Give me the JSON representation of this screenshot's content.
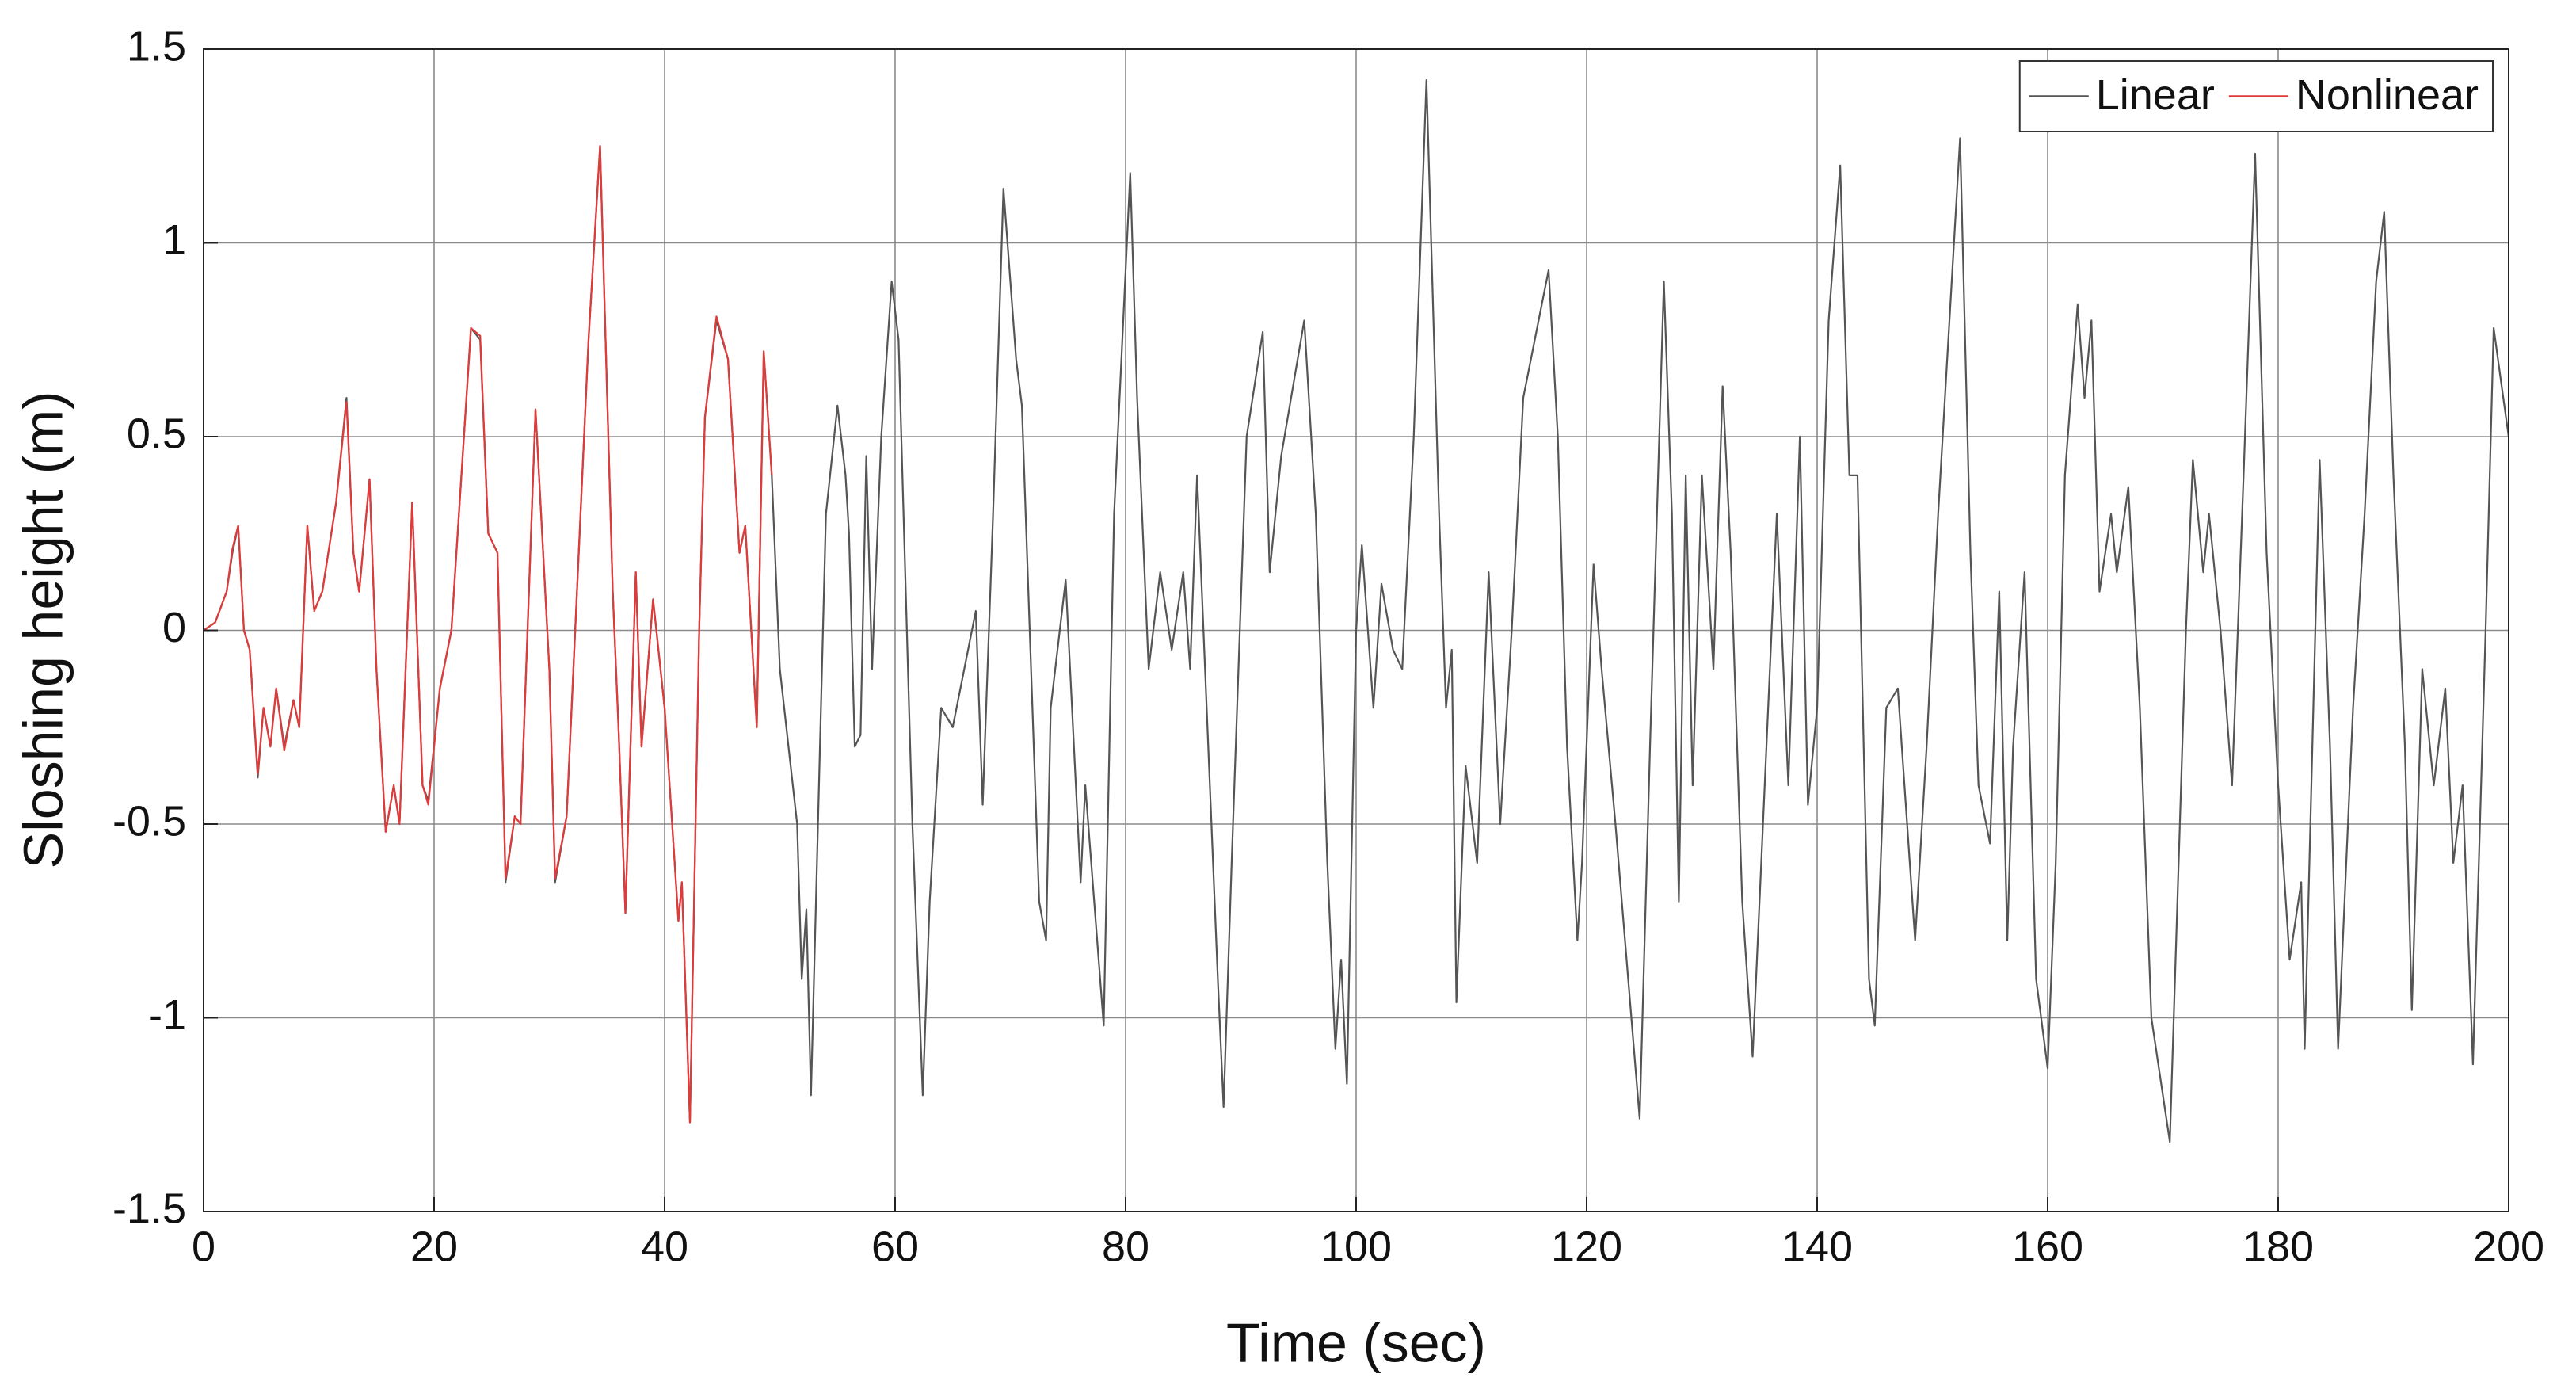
{
  "chart_data": {
    "type": "line",
    "xlabel": "Time (sec)",
    "ylabel": "Sloshing height (m)",
    "xlim": [
      0,
      200
    ],
    "xticks": [
      0,
      20,
      40,
      60,
      80,
      100,
      120,
      140,
      160,
      180,
      200
    ],
    "ylim": [
      -1.5,
      1.5
    ],
    "yticks": [
      -1.5,
      -1,
      -0.5,
      0,
      0.5,
      1,
      1.5
    ],
    "grid": true,
    "legend": "upper right",
    "series": [
      {
        "name": "Linear",
        "color": "#555555",
        "x": [
          0,
          1,
          2,
          2.5,
          3,
          3.5,
          4,
          4.7,
          5.2,
          5.8,
          6.3,
          7,
          7.8,
          8.3,
          9,
          9.6,
          10.3,
          11.5,
          12.4,
          13,
          13.5,
          14.4,
          15,
          15.8,
          16.5,
          17,
          18.1,
          19,
          19.5,
          20.5,
          21.5,
          23.2,
          24,
          24.7,
          25.5,
          26.2,
          27,
          27.5,
          28.8,
          30,
          30.5,
          31.5,
          33.4,
          34.4,
          35.5,
          36,
          36.6,
          37.5,
          38,
          39,
          40,
          41.2,
          41.5,
          42.2,
          43,
          43.5,
          44.5,
          45.5,
          46.5,
          47,
          48,
          48.6,
          49.3,
          50,
          51.5,
          51.9,
          52.3,
          52.7,
          54,
          55,
          55.7,
          56,
          56.5,
          57,
          57.5,
          58,
          58.8,
          59.7,
          60.3,
          61.5,
          62.4,
          63,
          64,
          65,
          66,
          67,
          67.6,
          68.5,
          69.4,
          70.5,
          71,
          72.5,
          73.1,
          73.5,
          74.8,
          76.1,
          76.5,
          78.1,
          79,
          80.4,
          81,
          82,
          83,
          84,
          85,
          85.6,
          86.2,
          88,
          88.5,
          89.2,
          90.5,
          91.9,
          92.5,
          93.5,
          95.5,
          96.5,
          97.5,
          98.2,
          98.7,
          99.2,
          100,
          100.5,
          101.5,
          102.2,
          103.2,
          104,
          105,
          106.1,
          107.2,
          107.8,
          108.3,
          108.7,
          109.5,
          110.5,
          111.5,
          112.5,
          113.5,
          114.5,
          116.7,
          117.5,
          118.3,
          119.2,
          119.6,
          120.6,
          121.3,
          122.5,
          124.6,
          125.5,
          126.7,
          127.4,
          128,
          128.6,
          129.2,
          130,
          131,
          131.8,
          132.5,
          133.5,
          134.4,
          135,
          136.5,
          137.5,
          138.5,
          139.2,
          140,
          141,
          142,
          142.8,
          143.5,
          144.5,
          145,
          146,
          147,
          148.5,
          149.5,
          150.5,
          152.4,
          153.3,
          154,
          155,
          155.8,
          156.5,
          157,
          158,
          159,
          160,
          160.7,
          161.5,
          162.6,
          163.2,
          163.8,
          164.5,
          165.5,
          166,
          167,
          168,
          169,
          170.6,
          172,
          172.6,
          173.5,
          174,
          175,
          176,
          177,
          178,
          179,
          180,
          181,
          182,
          182.3,
          183.6,
          184.5,
          185.2,
          186.5,
          187.5,
          188.5,
          189.2,
          190,
          191,
          191.6,
          192.5,
          193.5,
          194.5,
          195.2,
          196,
          196.9,
          198,
          198.7,
          199.3,
          200
        ],
        "values": [
          0,
          0.02,
          0.1,
          0.2,
          0.27,
          0,
          -0.05,
          -0.38,
          -0.2,
          -0.3,
          -0.15,
          -0.3,
          -0.18,
          -0.25,
          0.27,
          0.05,
          0.1,
          0.33,
          0.6,
          0.2,
          0.1,
          0.39,
          -0.1,
          -0.52,
          -0.4,
          -0.5,
          0.33,
          -0.4,
          -0.44,
          -0.15,
          0,
          0.78,
          0.75,
          0.25,
          0.2,
          -0.65,
          -0.48,
          -0.5,
          0.57,
          -0.1,
          -0.65,
          -0.48,
          0.75,
          1.25,
          0.1,
          -0.25,
          -0.73,
          0.15,
          -0.3,
          0.08,
          -0.2,
          -0.75,
          -0.65,
          -1.27,
          0,
          0.55,
          0.8,
          0.7,
          0.2,
          0.27,
          -0.25,
          0.72,
          0.4,
          -0.1,
          -0.5,
          -0.9,
          -0.72,
          -1.2,
          0.3,
          0.58,
          0.4,
          0.25,
          -0.3,
          -0.27,
          0.45,
          -0.1,
          0.5,
          0.9,
          0.75,
          -0.5,
          -1.2,
          -0.7,
          -0.2,
          -0.25,
          -0.1,
          0.05,
          -0.45,
          0.3,
          1.14,
          0.7,
          0.58,
          -0.7,
          -0.8,
          -0.2,
          0.13,
          -0.65,
          -0.4,
          -1.02,
          0.3,
          1.18,
          0.6,
          -0.1,
          0.15,
          -0.05,
          0.15,
          -0.1,
          0.4,
          -0.9,
          -1.23,
          -0.6,
          0.5,
          0.77,
          0.15,
          0.45,
          0.8,
          0.3,
          -0.6,
          -1.08,
          -0.85,
          -1.17,
          0,
          0.22,
          -0.2,
          0.12,
          -0.05,
          -0.1,
          0.5,
          1.42,
          0.3,
          -0.2,
          -0.05,
          -0.96,
          -0.35,
          -0.6,
          0.15,
          -0.5,
          0,
          0.6,
          0.93,
          0.5,
          -0.3,
          -0.8,
          -0.6,
          0.17,
          -0.1,
          -0.5,
          -1.26,
          -0.3,
          0.9,
          0.3,
          -0.7,
          0.4,
          -0.4,
          0.4,
          -0.1,
          0.63,
          0.2,
          -0.7,
          -1.1,
          -0.7,
          0.3,
          -0.4,
          0.5,
          -0.45,
          -0.2,
          0.8,
          1.2,
          0.4,
          0.4,
          -0.9,
          -1.02,
          -0.2,
          -0.15,
          -0.8,
          -0.3,
          0.3,
          1.27,
          0.2,
          -0.4,
          -0.55,
          0.1,
          -0.8,
          -0.3,
          0.15,
          -0.9,
          -1.13,
          -0.6,
          0.4,
          0.84,
          0.6,
          0.8,
          0.1,
          0.3,
          0.15,
          0.37,
          -0.2,
          -1,
          -1.32,
          0,
          0.44,
          0.15,
          0.3,
          0,
          -0.4,
          0.4,
          1.23,
          0.2,
          -0.4,
          -0.85,
          -0.65,
          -1.08,
          0.44,
          -0.3,
          -1.08,
          -0.2,
          0.3,
          0.9,
          1.08,
          0.4,
          -0.3,
          -0.98,
          -0.1,
          -0.4,
          -0.15,
          -0.6,
          -0.4,
          -1.12,
          0,
          0.78,
          0.65,
          0.5
        ]
      },
      {
        "name": "Nonlinear",
        "color": "#e03a3a",
        "x": [
          0,
          1,
          2,
          2.5,
          3,
          3.5,
          4,
          4.7,
          5.2,
          5.8,
          6.3,
          7,
          7.8,
          8.3,
          9,
          9.6,
          10.3,
          11.5,
          12.4,
          13,
          13.5,
          14.4,
          15,
          15.8,
          16.5,
          17,
          18.1,
          19,
          19.5,
          20.5,
          21.5,
          23.2,
          24,
          24.7,
          25.5,
          26.2,
          27,
          27.5,
          28.8,
          30,
          30.5,
          31.5,
          33.4,
          34.4,
          35.5,
          36,
          36.6,
          37.5,
          38,
          39,
          40,
          41.2,
          41.5,
          42.2,
          43,
          43.5,
          44.5,
          45.5,
          46.5,
          47,
          48,
          48.6,
          49.3
        ],
        "values": [
          0,
          0.02,
          0.1,
          0.21,
          0.27,
          0,
          -0.05,
          -0.37,
          -0.2,
          -0.3,
          -0.15,
          -0.31,
          -0.18,
          -0.25,
          0.27,
          0.05,
          0.1,
          0.33,
          0.59,
          0.2,
          0.1,
          0.39,
          -0.1,
          -0.52,
          -0.4,
          -0.5,
          0.33,
          -0.4,
          -0.45,
          -0.15,
          0,
          0.78,
          0.76,
          0.25,
          0.2,
          -0.64,
          -0.48,
          -0.5,
          0.57,
          -0.1,
          -0.64,
          -0.48,
          0.75,
          1.25,
          0.1,
          -0.25,
          -0.73,
          0.15,
          -0.3,
          0.08,
          -0.2,
          -0.75,
          -0.65,
          -1.27,
          0,
          0.55,
          0.81,
          0.7,
          0.2,
          0.27,
          -0.25,
          0.72,
          0.4
        ]
      }
    ]
  }
}
